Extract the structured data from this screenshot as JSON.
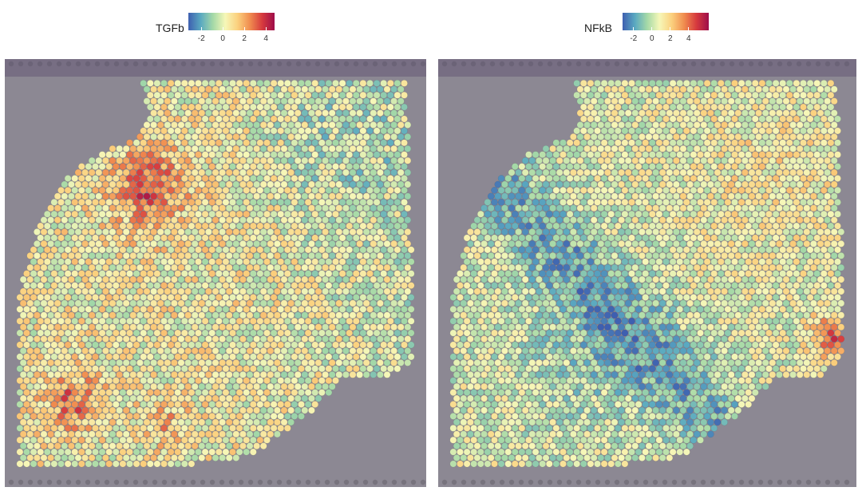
{
  "panels": [
    {
      "legend_title": "TGFb",
      "ticks": [
        "-2",
        "0",
        "2",
        "4"
      ],
      "tick_values": [
        -2,
        0,
        2,
        4
      ],
      "range": [
        -3.2,
        4.8
      ],
      "pattern": "tgfb"
    },
    {
      "legend_title": "NFkB",
      "ticks": [
        "-2",
        "0",
        "2",
        "4"
      ],
      "tick_values": [
        -2,
        0,
        2,
        4
      ],
      "range": [
        -3.2,
        6.2
      ],
      "pattern": "nfkb"
    }
  ],
  "colors": {
    "scale": [
      "#3e5fb0",
      "#5aa9c1",
      "#a5d9a7",
      "#f6f7b8",
      "#fbd07d",
      "#f08c4f",
      "#d63a3e",
      "#9e0d4a"
    ],
    "background": "#8c8893",
    "slide_edge": "#5e4f72"
  }
}
